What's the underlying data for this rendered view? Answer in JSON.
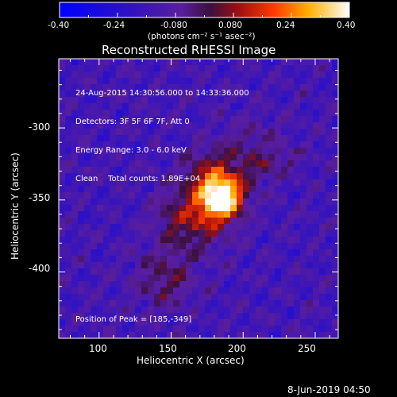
{
  "colorbar": {
    "tick_labels": [
      "-0.40",
      "-0.24",
      "-0.080",
      "0.080",
      "0.24",
      "0.40"
    ],
    "range": [
      -0.4,
      0.4
    ],
    "unit_label": "(photons cm⁻² s⁻¹ asec⁻²)"
  },
  "title": "Reconstructed RHESSI Image",
  "info": {
    "line1": "24-Aug-2015 14:30:56.000 to 14:33:36.000",
    "line2": "Detectors: 3F 5F 6F 7F, Att 0",
    "line3": "Energy Range: 3.0 - 6.0 keV",
    "line4": "Clean    Total counts: 1.89E+04",
    "peak": "Position of Peak = [185,-349]"
  },
  "axes": {
    "xlabel": "Heliocentric X (arcsec)",
    "ylabel": "Heliocentric Y (arcsec)",
    "xticks": [
      "100",
      "150",
      "200",
      "250"
    ],
    "yticks": [
      "-300",
      "-350",
      "-400"
    ]
  },
  "timestamp": "8-Jun-2019 04:50",
  "chart_data": {
    "type": "heatmap",
    "title": "Reconstructed RHESSI Image",
    "xlabel": "Heliocentric X (arcsec)",
    "ylabel": "Heliocentric Y (arcsec)",
    "xlim": [
      72,
      266
    ],
    "ylim": [
      -446,
      -252
    ],
    "xticks": [
      100,
      150,
      200,
      250
    ],
    "yticks": [
      -300,
      -350,
      -400
    ],
    "color_range": [
      -0.4,
      0.4
    ],
    "colormap": "blue-purple-red-yellow-white",
    "peak": [
      185,
      -349
    ],
    "peak_value": 0.4,
    "background_level": -0.14,
    "sources": [
      {
        "x": 185,
        "y": -349,
        "sigma": 10,
        "amplitude": 0.54
      },
      {
        "x": 165,
        "y": -362,
        "sigma": 16,
        "amplitude": 0.22
      },
      {
        "x": 178,
        "y": -332,
        "sigma": 12,
        "amplitude": 0.18
      },
      {
        "x": 145,
        "y": -405,
        "sigma": 14,
        "amplitude": 0.14
      },
      {
        "x": 205,
        "y": -318,
        "sigma": 16,
        "amplitude": 0.1
      }
    ]
  }
}
